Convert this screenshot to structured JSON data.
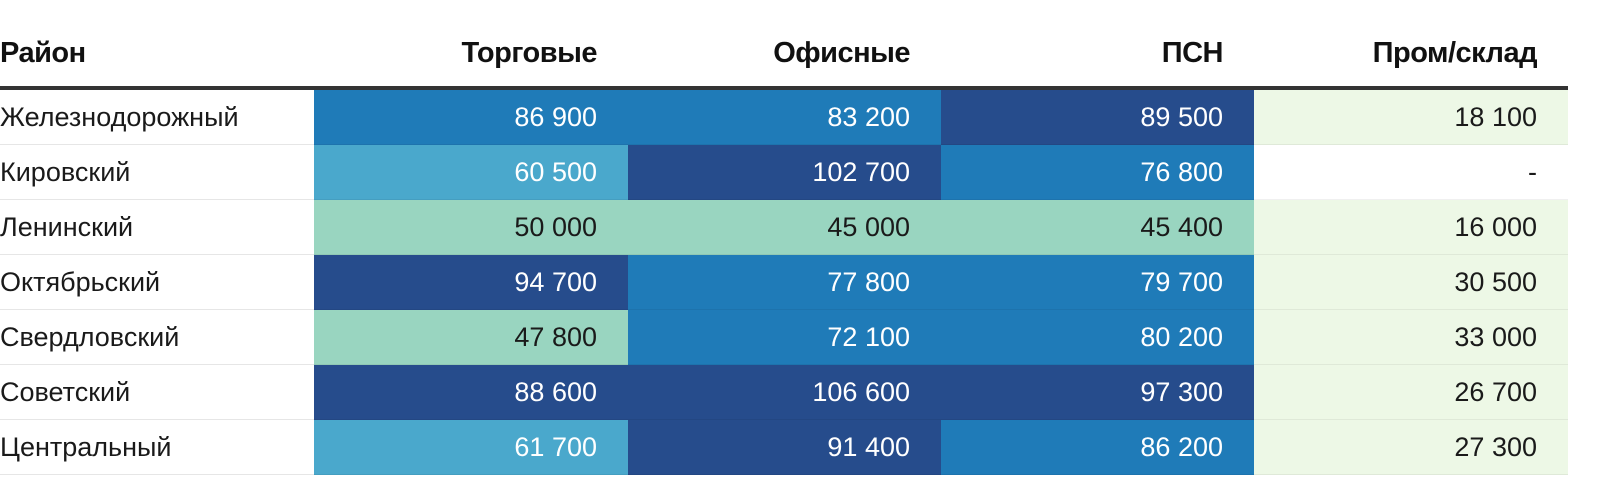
{
  "chart_data": {
    "type": "table",
    "columns": [
      "Район",
      "Торговые",
      "Офисные",
      "ПСН",
      "Пром/склад"
    ],
    "rows": [
      {
        "name": "Железнодорожный",
        "values": [
          "86 900",
          "83 200",
          "89 500",
          "18 100"
        ]
      },
      {
        "name": "Кировский",
        "values": [
          "60 500",
          "102 700",
          "76 800",
          "-"
        ]
      },
      {
        "name": "Ленинский",
        "values": [
          "50 000",
          "45 000",
          "45 400",
          "16 000"
        ]
      },
      {
        "name": "Октябрьский",
        "values": [
          "94 700",
          "77 800",
          "79 700",
          "30 500"
        ]
      },
      {
        "name": "Свердловский",
        "values": [
          "47 800",
          "72 100",
          "80 200",
          "33 000"
        ]
      },
      {
        "name": "Советский",
        "values": [
          "88 600",
          "106 600",
          "97 300",
          "26 700"
        ]
      },
      {
        "name": "Центральный",
        "values": [
          "61 700",
          "91 400",
          "86 200",
          "27 300"
        ]
      }
    ],
    "cell_colors": [
      [
        "#1f7bb8",
        "#1f7bb8",
        "#264c8c",
        "#edf8e6"
      ],
      [
        "#4aa8cc",
        "#264c8c",
        "#1f7bb8",
        "#ffffff"
      ],
      [
        "#99d5c0",
        "#99d5c0",
        "#99d5c0",
        "#edf8e6"
      ],
      [
        "#264c8c",
        "#1f7bb8",
        "#1f7bb8",
        "#edf8e6"
      ],
      [
        "#99d5c0",
        "#1f7bb8",
        "#1f7bb8",
        "#edf8e6"
      ],
      [
        "#264c8c",
        "#264c8c",
        "#264c8c",
        "#edf8e6"
      ],
      [
        "#4aa8cc",
        "#264c8c",
        "#1f7bb8",
        "#edf8e6"
      ]
    ],
    "text_colors": {
      "on_dark": "#ffffff",
      "on_light": "#1a1a1a"
    }
  }
}
